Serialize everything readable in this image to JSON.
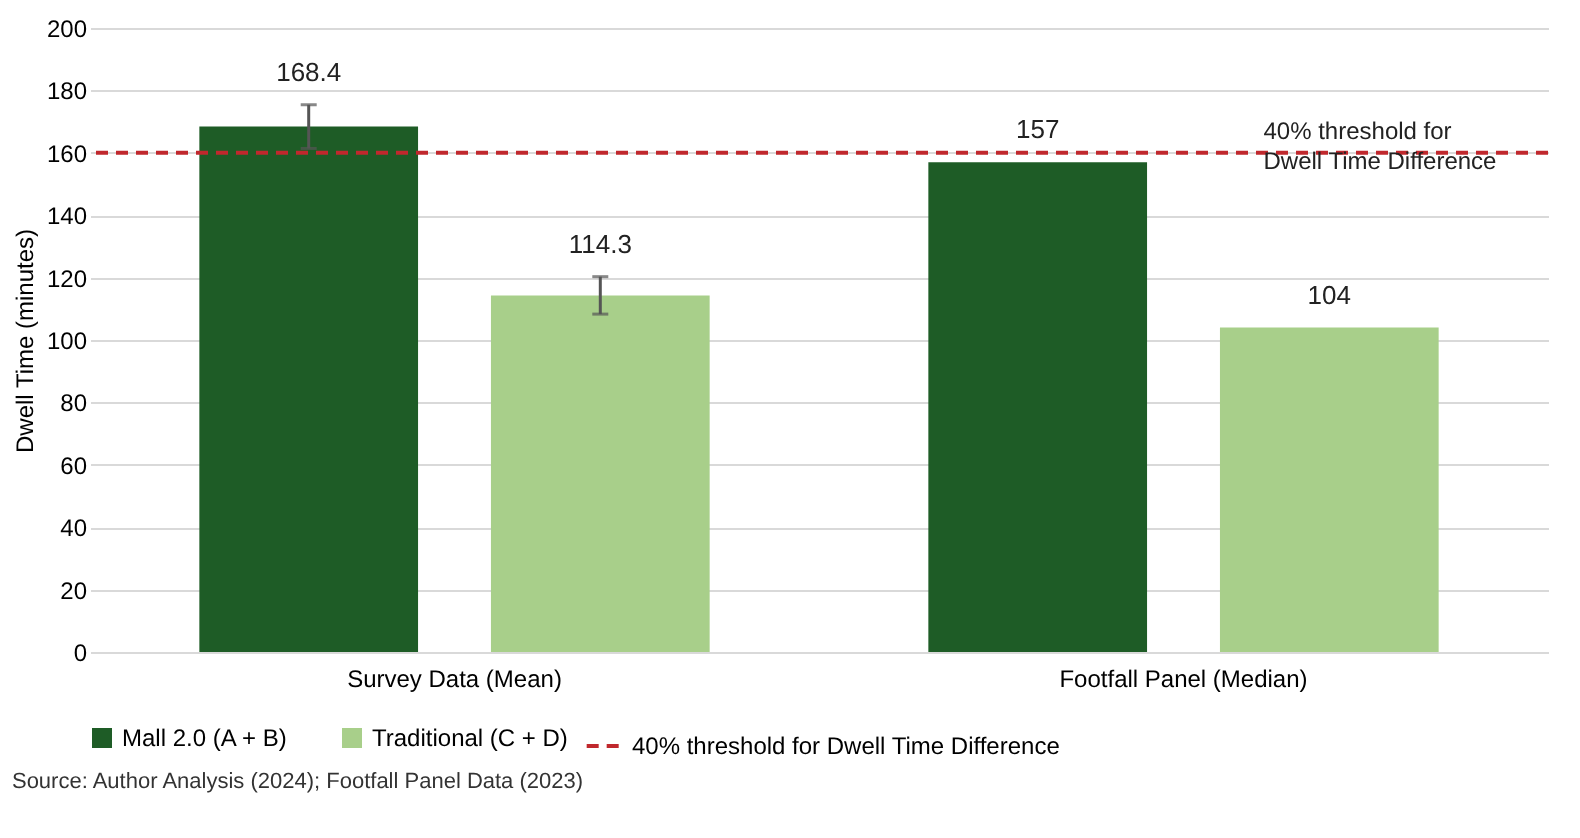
{
  "chart_data": {
    "type": "bar",
    "ylabel": "Dwell Time (minutes)",
    "categories": [
      "Survey Data (Mean)",
      "Footfall Panel (Median)"
    ],
    "series": [
      {
        "name": "Mall 2.0 (A + B)",
        "color": "#1e5c26",
        "values": [
          168.4,
          157
        ],
        "errors": [
          7,
          null
        ]
      },
      {
        "name": "Traditional (C + D)",
        "color": "#a8cf8a",
        "values": [
          114.3,
          104
        ],
        "errors": [
          6,
          null
        ]
      }
    ],
    "data_labels": true,
    "ylim": [
      0,
      200
    ],
    "yticks": [
      0,
      20,
      40,
      60,
      80,
      100,
      120,
      140,
      160,
      180,
      200
    ],
    "grid": "y",
    "ref_lines": [
      {
        "axis": "y",
        "value": 160,
        "label": "40% threshold for Dwell Time Difference",
        "color": "#c0282d",
        "line_style": "dashed"
      }
    ],
    "annotations": [
      "40% threshold for Dwell Time Difference",
      "Source: Author Analysis (2024); Footfall Panel Data (2023)"
    ],
    "legend": "bottom"
  }
}
